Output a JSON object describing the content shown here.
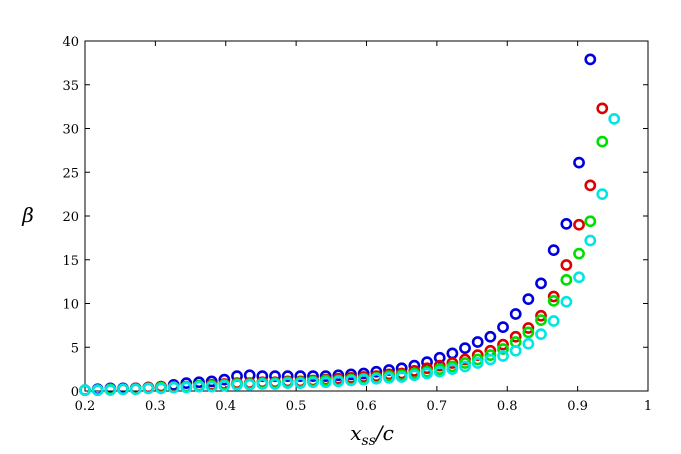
{
  "chart_data": {
    "type": "scatter",
    "title": "",
    "xlabel_main": "x",
    "xlabel_sub": "ss",
    "xlabel_tail": "/c",
    "ylabel": "β",
    "xlim": [
      0.2,
      1.0
    ],
    "ylim": [
      0,
      40
    ],
    "xticks": [
      "0.2",
      "0.3",
      "0.4",
      "0.5",
      "0.6",
      "0.7",
      "0.8",
      "0.9",
      "1"
    ],
    "yticks": [
      "0",
      "5",
      "10",
      "15",
      "20",
      "25",
      "30",
      "35",
      "40"
    ],
    "grid": false,
    "legend": "none",
    "series": [
      {
        "color": "#0000dd",
        "x": [
          0.2,
          0.218,
          0.236,
          0.254,
          0.272,
          0.29,
          0.308,
          0.326,
          0.344,
          0.362,
          0.38,
          0.398,
          0.416,
          0.434,
          0.452,
          0.47,
          0.488,
          0.506,
          0.524,
          0.542,
          0.56,
          0.578,
          0.596,
          0.614,
          0.632,
          0.65,
          0.668,
          0.686,
          0.704,
          0.722,
          0.74,
          0.758,
          0.776,
          0.794,
          0.812,
          0.83,
          0.848,
          0.866,
          0.884,
          0.902,
          0.918
        ],
        "y": [
          0.1,
          0.2,
          0.3,
          0.3,
          0.3,
          0.4,
          0.5,
          0.7,
          0.9,
          1.0,
          1.1,
          1.3,
          1.7,
          1.8,
          1.7,
          1.7,
          1.7,
          1.7,
          1.7,
          1.7,
          1.8,
          1.9,
          2.0,
          2.2,
          2.4,
          2.6,
          2.9,
          3.3,
          3.8,
          4.3,
          4.9,
          5.6,
          6.2,
          7.3,
          8.8,
          10.5,
          12.3,
          16.1,
          19.1,
          26.1,
          37.9
        ]
      },
      {
        "color": "#dd0000",
        "x": [
          0.2,
          0.218,
          0.236,
          0.254,
          0.272,
          0.29,
          0.308,
          0.326,
          0.344,
          0.362,
          0.38,
          0.398,
          0.416,
          0.434,
          0.452,
          0.47,
          0.488,
          0.506,
          0.524,
          0.542,
          0.56,
          0.578,
          0.596,
          0.614,
          0.632,
          0.65,
          0.668,
          0.686,
          0.704,
          0.722,
          0.74,
          0.758,
          0.776,
          0.794,
          0.812,
          0.83,
          0.848,
          0.866,
          0.884,
          0.902,
          0.918,
          0.935
        ],
        "y": [
          0.1,
          0.1,
          0.2,
          0.2,
          0.3,
          0.4,
          0.5,
          0.5,
          0.5,
          0.6,
          0.7,
          0.8,
          0.9,
          0.9,
          1.0,
          1.0,
          1.1,
          1.1,
          1.2,
          1.3,
          1.4,
          1.5,
          1.6,
          1.7,
          1.9,
          2.0,
          2.3,
          2.6,
          2.9,
          3.2,
          3.6,
          4.1,
          4.6,
          5.3,
          6.2,
          7.2,
          8.6,
          10.8,
          14.4,
          19.0,
          23.5,
          32.3
        ]
      },
      {
        "color": "#00dd00",
        "x": [
          0.2,
          0.218,
          0.236,
          0.254,
          0.272,
          0.29,
          0.308,
          0.326,
          0.344,
          0.362,
          0.38,
          0.398,
          0.416,
          0.434,
          0.452,
          0.47,
          0.488,
          0.506,
          0.524,
          0.542,
          0.56,
          0.578,
          0.596,
          0.614,
          0.632,
          0.65,
          0.668,
          0.686,
          0.704,
          0.722,
          0.74,
          0.758,
          0.776,
          0.794,
          0.812,
          0.83,
          0.848,
          0.866,
          0.884,
          0.902,
          0.918,
          0.935
        ],
        "y": [
          0.1,
          0.1,
          0.2,
          0.2,
          0.2,
          0.3,
          0.4,
          0.4,
          0.5,
          0.6,
          0.6,
          0.7,
          0.8,
          0.8,
          0.9,
          0.9,
          1.0,
          1.0,
          1.1,
          1.2,
          1.2,
          1.3,
          1.4,
          1.5,
          1.7,
          1.8,
          2.0,
          2.2,
          2.5,
          2.8,
          3.2,
          3.6,
          4.1,
          4.8,
          5.6,
          6.7,
          8.1,
          10.3,
          12.7,
          15.7,
          19.4,
          28.5
        ]
      },
      {
        "color": "#00e6e6",
        "x": [
          0.2,
          0.218,
          0.236,
          0.254,
          0.272,
          0.29,
          0.308,
          0.326,
          0.344,
          0.362,
          0.38,
          0.398,
          0.416,
          0.434,
          0.452,
          0.47,
          0.488,
          0.506,
          0.524,
          0.542,
          0.56,
          0.578,
          0.596,
          0.614,
          0.632,
          0.65,
          0.668,
          0.686,
          0.704,
          0.722,
          0.74,
          0.758,
          0.776,
          0.794,
          0.812,
          0.83,
          0.848,
          0.866,
          0.884,
          0.902,
          0.918,
          0.935,
          0.952
        ],
        "y": [
          0.1,
          0.1,
          0.1,
          0.2,
          0.2,
          0.3,
          0.3,
          0.4,
          0.4,
          0.5,
          0.5,
          0.6,
          0.7,
          0.7,
          0.8,
          0.8,
          0.9,
          0.9,
          1.0,
          1.0,
          1.1,
          1.2,
          1.3,
          1.4,
          1.5,
          1.6,
          1.8,
          2.0,
          2.2,
          2.5,
          2.8,
          3.2,
          3.6,
          4.0,
          4.6,
          5.4,
          6.5,
          8.0,
          10.2,
          13.0,
          17.2,
          22.5,
          31.1
        ]
      }
    ]
  }
}
